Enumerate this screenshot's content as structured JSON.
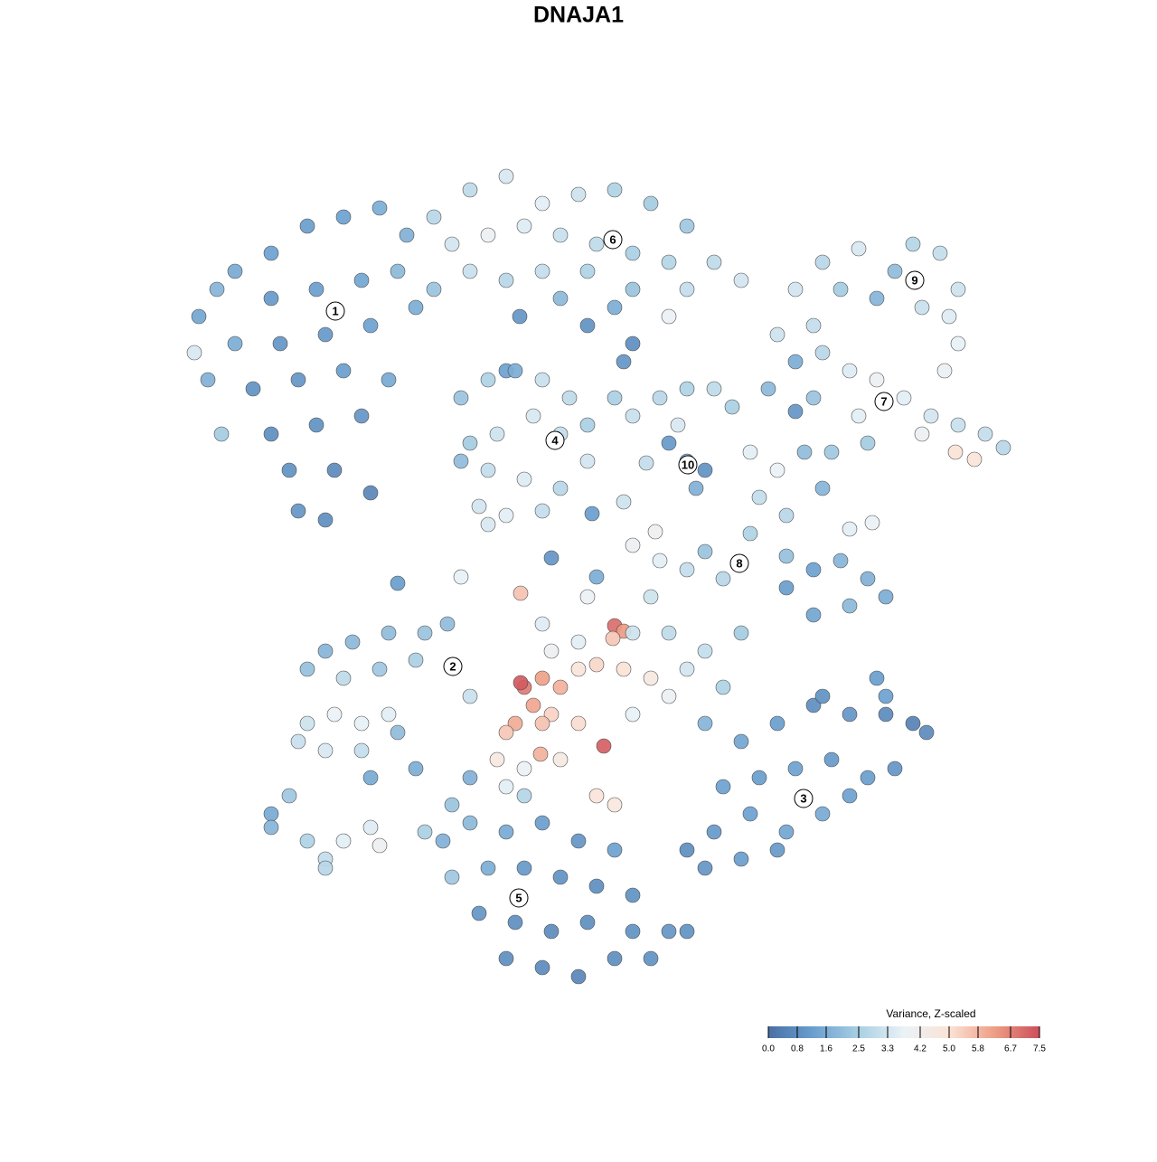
{
  "chart_data": {
    "type": "scatter",
    "title": "DNAJA1",
    "xlim": [
      0,
      128
    ],
    "ylim": [
      128,
      0
    ],
    "x": [
      22,
      24,
      26,
      30,
      34,
      38,
      42,
      45,
      30,
      35,
      40,
      44,
      26,
      31,
      36,
      41,
      46,
      23,
      28,
      33,
      38,
      43,
      30,
      35,
      40,
      32,
      37,
      41,
      33,
      36,
      21.5,
      24.5,
      48,
      52,
      56,
      60,
      64,
      68,
      72,
      76,
      50,
      54,
      58,
      62,
      66,
      70,
      74,
      79,
      52,
      56,
      60,
      65,
      70,
      76,
      82,
      48,
      62,
      68,
      57.5,
      65,
      70,
      69,
      56,
      74,
      88,
      91,
      95,
      99,
      101,
      104,
      106,
      105,
      106,
      93,
      97,
      102,
      104.5,
      90,
      86,
      88,
      91,
      94,
      97,
      100,
      103,
      106,
      109,
      111,
      85,
      90,
      95,
      102,
      105.7,
      107.8,
      88,
      51,
      54,
      57,
      60,
      63,
      65,
      52,
      55,
      59,
      62,
      65,
      51,
      54,
      58,
      62,
      53,
      56,
      60,
      54,
      68,
      70,
      73,
      76,
      79,
      81,
      74,
      76,
      78,
      77,
      75,
      71.5,
      69,
      65.5,
      83,
      86,
      84,
      87,
      89,
      92,
      96,
      91,
      83,
      87,
      90,
      93,
      96,
      98,
      94,
      90,
      87,
      78,
      80,
      76,
      94,
      96.5,
      44,
      51,
      61,
      70,
      72.5,
      73,
      66,
      34,
      36,
      39,
      43,
      47,
      49.5,
      38,
      42,
      46,
      34,
      37,
      40,
      43,
      36,
      40,
      44,
      33,
      41,
      46,
      52,
      57.6,
      58,
      60,
      62,
      57.6,
      59,
      61,
      57,
      60,
      64,
      66,
      69,
      72,
      61,
      64,
      68,
      69,
      67.8,
      64,
      56,
      59.8,
      66.8,
      55,
      58,
      62,
      66,
      68,
      70,
      74,
      76,
      70,
      74,
      78,
      82,
      80,
      65,
      72,
      60,
      58,
      52,
      50,
      56,
      78,
      82,
      86,
      90,
      94,
      98,
      101,
      102.5,
      97,
      91,
      80,
      84,
      88,
      92,
      96,
      99,
      79,
      83,
      87,
      91,
      94,
      78,
      82,
      86,
      76,
      98,
      49,
      52,
      56,
      60,
      64,
      68,
      50,
      54,
      58,
      62,
      66,
      70,
      53,
      57,
      61,
      65,
      70,
      74,
      76,
      56,
      60,
      64,
      68,
      72,
      47,
      30,
      32,
      34,
      36,
      38,
      36,
      41,
      42,
      30
    ],
    "y": [
      35,
      32,
      30,
      28,
      25,
      24,
      23,
      26,
      33,
      32,
      31,
      30,
      38,
      38,
      37,
      36,
      34,
      42,
      43,
      42,
      41,
      42,
      48,
      47,
      46,
      52,
      52,
      54.5,
      56.5,
      57.5,
      39,
      48,
      24,
      21,
      19.5,
      22.5,
      21.5,
      21,
      22.5,
      25,
      27,
      26,
      25,
      26,
      27,
      28,
      29,
      29,
      30,
      31,
      30,
      30,
      32,
      32,
      31,
      32,
      33,
      34,
      35,
      36,
      38,
      40,
      41,
      35,
      32,
      29,
      27.5,
      30,
      27,
      28,
      32,
      35,
      38,
      32,
      33,
      34,
      41,
      36,
      37,
      40,
      39,
      41,
      42,
      44,
      46,
      47,
      48,
      49.5,
      43,
      44,
      46,
      48,
      50,
      50.8,
      45.5,
      44,
      42,
      41,
      42,
      44,
      47,
      49,
      48,
      46,
      48,
      51,
      51,
      52,
      53,
      54,
      56,
      57,
      56.5,
      58,
      44,
      46,
      44,
      43,
      43,
      45,
      49,
      51,
      52,
      54,
      47,
      51.2,
      55.5,
      56.8,
      50,
      52,
      55,
      57,
      50,
      50,
      49,
      54,
      59,
      61.5,
      63,
      62,
      64,
      66,
      67,
      68,
      65,
      61,
      64,
      63,
      58.5,
      57.8,
      64.5,
      63.8,
      61.7,
      60.3,
      58.8,
      62,
      63.8,
      74,
      72,
      71,
      70,
      70,
      69,
      75,
      74,
      73,
      80,
      79,
      80,
      79,
      83,
      83,
      81,
      82,
      86,
      85,
      77,
      65.6,
      76,
      75,
      76,
      75.5,
      78,
      79,
      80,
      80,
      74,
      73.5,
      74,
      75,
      72,
      71,
      69.2,
      69.8,
      70.6,
      80,
      81,
      83.4,
      82.5,
      84,
      85,
      84,
      88,
      89,
      79,
      77,
      74,
      70,
      70,
      72,
      70,
      76,
      66,
      66,
      69,
      88,
      86,
      89,
      87,
      80,
      82,
      80,
      78,
      79,
      79,
      80,
      81,
      75,
      77,
      87,
      86,
      85,
      84,
      86,
      85,
      92,
      90,
      92,
      90,
      88,
      96,
      95,
      94,
      94,
      77,
      93,
      91,
      92,
      91,
      93,
      94,
      97,
      96,
      96,
      97,
      98,
      99,
      101,
      102,
      103,
      102,
      103,
      103,
      103,
      106,
      107,
      108,
      106,
      106,
      92,
      90,
      88,
      93,
      95,
      93,
      96,
      91.5,
      93.5,
      91.5
    ],
    "values": [
      1.4,
      1.8,
      1.5,
      1.3,
      1.2,
      1.3,
      1.6,
      1.7,
      1.1,
      1.2,
      1.4,
      1.9,
      1.6,
      1.0,
      1.1,
      1.3,
      1.6,
      1.7,
      0.9,
      1.0,
      1.2,
      1.5,
      0.8,
      0.9,
      1.0,
      0.9,
      0.7,
      0.6,
      1.0,
      0.8,
      3.4,
      2.4,
      2.8,
      2.9,
      3.4,
      3.6,
      3.2,
      2.6,
      2.4,
      2.3,
      3.3,
      3.9,
      3.5,
      3.1,
      2.9,
      2.5,
      2.7,
      2.9,
      3.1,
      2.8,
      3.0,
      2.6,
      2.2,
      3.0,
      3.3,
      2.2,
      1.9,
      1.6,
      1.0,
      0.9,
      0.8,
      1.0,
      1.3,
      3.8,
      3.3,
      2.8,
      3.4,
      2.0,
      2.7,
      3.0,
      3.2,
      3.5,
      3.7,
      2.4,
      1.8,
      3.1,
      3.9,
      3.0,
      3.2,
      1.6,
      2.8,
      3.5,
      3.9,
      3.6,
      3.3,
      3.1,
      3.0,
      2.8,
      1.9,
      2.2,
      3.6,
      3.9,
      5.0,
      4.9,
      1.0,
      2.2,
      2.6,
      1.6,
      3.1,
      2.9,
      2.5,
      2.4,
      3.2,
      3.4,
      3.0,
      3.3,
      2.0,
      3.0,
      3.5,
      2.8,
      3.3,
      3.6,
      3.0,
      3.4,
      2.5,
      3.1,
      2.8,
      2.6,
      2.9,
      2.5,
      1.1,
      1.3,
      0.9,
      1.7,
      3.4,
      3.0,
      3.2,
      1.2,
      3.6,
      3.8,
      3.0,
      2.8,
      2.0,
      2.3,
      2.4,
      1.8,
      2.6,
      2.1,
      1.3,
      1.8,
      1.7,
      1.6,
      1.9,
      1.4,
      1.2,
      2.2,
      2.8,
      3.0,
      3.6,
      3.8,
      1.2,
      3.7,
      1.0,
      3.9,
      4.0,
      3.6,
      1.6,
      2.1,
      1.8,
      1.9,
      2.0,
      2.2,
      2.0,
      2.9,
      2.3,
      2.5,
      3.2,
      3.8,
      3.7,
      3.6,
      3.4,
      3.0,
      2.0,
      3.1,
      1.5,
      1.6,
      3.1,
      5.6,
      6.8,
      6.2,
      5.9,
      7.3,
      6.1,
      5.3,
      6.0,
      5.6,
      4.8,
      5.2,
      5.0,
      4.6,
      4.0,
      3.6,
      7.0,
      6.3,
      5.5,
      5.1,
      5.5,
      5.9,
      7.2,
      4.6,
      3.8,
      4.5,
      4.9,
      4.7,
      3.7,
      3.9,
      3.3,
      3.2,
      2.9,
      3.0,
      2.4,
      2.6,
      3.8,
      3.2,
      3.5,
      2.7,
      1.7,
      2.2,
      3.6,
      1.8,
      1.4,
      1.2,
      0.8,
      1.0,
      0.7,
      0.5,
      0.7,
      1.2,
      0.9,
      1.3,
      1.2,
      1.3,
      1.1,
      1.2,
      1.0,
      1.1,
      1.3,
      1.4,
      1.5,
      1.3,
      1.0,
      1.2,
      1.1,
      0.8,
      1.3,
      1.7,
      1.9,
      1.5,
      1.2,
      1.0,
      1.3,
      2.3,
      1.6,
      1.1,
      0.9,
      0.8,
      0.9,
      1.0,
      0.8,
      0.7,
      0.8,
      0.9,
      1.0,
      0.9,
      0.8,
      0.7,
      0.6,
      0.8,
      0.9,
      2.5,
      1.5,
      2.3,
      2.6,
      3.0,
      3.6,
      2.8,
      3.5,
      4.0,
      1.8
    ],
    "annotations": [
      {
        "text": "1",
        "x": 37.1,
        "y": 34.4
      },
      {
        "text": "2",
        "x": 50.1,
        "y": 73.7
      },
      {
        "text": "3",
        "x": 88.9,
        "y": 88.3
      },
      {
        "text": "4",
        "x": 61.4,
        "y": 48.7
      },
      {
        "text": "5",
        "x": 57.4,
        "y": 99.3
      },
      {
        "text": "6",
        "x": 67.8,
        "y": 26.5
      },
      {
        "text": "7",
        "x": 97.8,
        "y": 44.4
      },
      {
        "text": "8",
        "x": 81.8,
        "y": 62.3
      },
      {
        "text": "9",
        "x": 101.2,
        "y": 31.0
      },
      {
        "text": "10",
        "x": 76.1,
        "y": 51.4
      }
    ],
    "colorbar": {
      "title": "Variance, Z-scaled",
      "clim": [
        0,
        7.5
      ],
      "colorscale": [
        "#4a6fa4",
        "#6a9fcf",
        "#a9cfe3",
        "#eaf2f7",
        "#fbe3d6",
        "#ee9e86",
        "#cc4e5a"
      ],
      "ticks": [
        {
          "value": 0,
          "label": "0.0"
        },
        0.8,
        1.6,
        2.5,
        3.3,
        4.2,
        {
          "value": 5,
          "label": "5.0"
        },
        5.8,
        6.7,
        7.5
      ]
    }
  }
}
